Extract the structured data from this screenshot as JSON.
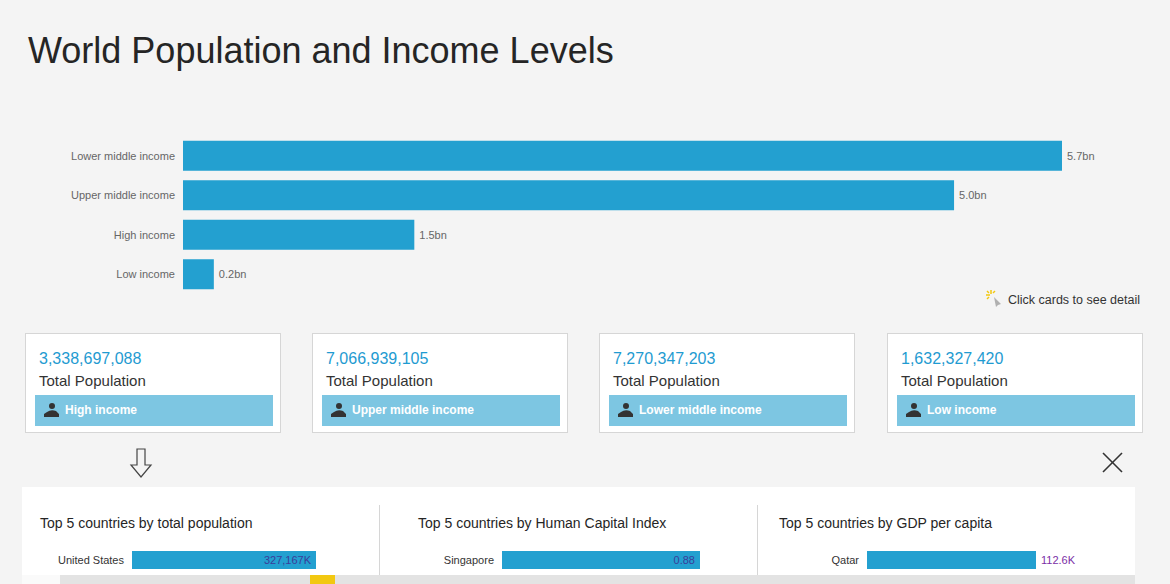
{
  "title": "World Population and Income Levels",
  "chart_data": {
    "type": "bar",
    "orientation": "horizontal",
    "categories": [
      "Lower middle income",
      "Upper middle income",
      "High income",
      "Low income"
    ],
    "values": [
      5.7,
      5.0,
      1.5,
      0.2
    ],
    "value_labels": [
      "5.7bn",
      "5.0bn",
      "1.5bn",
      "0.2bn"
    ],
    "color": "#23a0d0",
    "xlim": [
      0,
      5.7
    ],
    "data_labels": true,
    "tick_labels": "y",
    "grid": false
  },
  "hint": "Click cards to see detail",
  "cards": [
    {
      "value": "3,338,697,088",
      "label": "Total Population",
      "button": "High income"
    },
    {
      "value": "7,066,939,105",
      "label": "Total Population",
      "button": "Upper middle income"
    },
    {
      "value": "7,270,347,203",
      "label": "Total Population",
      "button": "Lower middle income"
    },
    {
      "value": "1,632,327,420",
      "label": "Total Population",
      "button": "Low income"
    }
  ],
  "detail_panels": [
    {
      "title": "Top 5 countries by total population",
      "chart_data": {
        "type": "bar",
        "orientation": "horizontal",
        "categories": [
          "United States"
        ],
        "values": [
          327167000
        ],
        "value_labels": [
          "327,167K"
        ],
        "color": "#23a0d0",
        "xlim": [
          0,
          327167000
        ],
        "data_labels": true,
        "tick_labels": "y",
        "grid": false
      }
    },
    {
      "title": "Top 5 countries by Human Capital Index",
      "chart_data": {
        "type": "bar",
        "orientation": "horizontal",
        "categories": [
          "Singapore"
        ],
        "values": [
          0.88
        ],
        "color": "#23a0d0",
        "xlim": [
          0,
          0.88
        ],
        "data_labels": true,
        "tick_labels": "y",
        "grid": false
      }
    },
    {
      "title": "Top 5 countries by GDP per capita",
      "chart_data": {
        "type": "bar",
        "orientation": "horizontal",
        "categories": [
          "Qatar"
        ],
        "values": [
          112600
        ],
        "value_labels": [
          "112.6K"
        ],
        "color": "#23a0d0",
        "xlim": [
          0,
          112600
        ],
        "data_labels": true,
        "tick_labels": "y",
        "grid": false
      }
    }
  ]
}
